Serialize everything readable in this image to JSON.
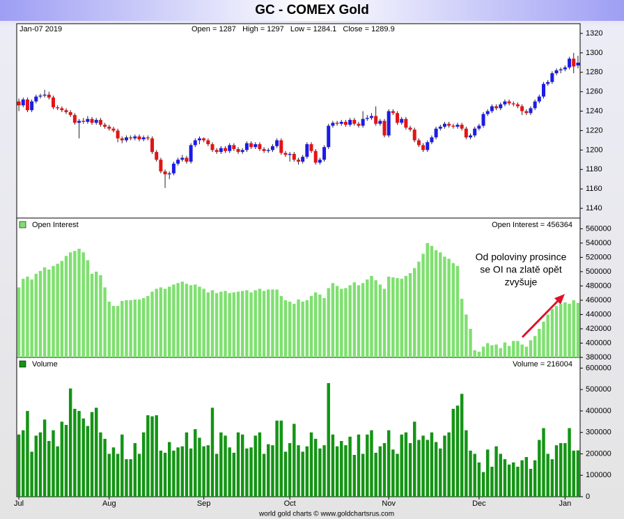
{
  "title": "GC - COMEX Gold",
  "footer": "world gold charts © www.goldchartsrus.com",
  "chart_data": [
    {
      "type": "candlestick",
      "date_label": "Jan-07  2019",
      "readout": "Open = 1287   High = 1297   Low = 1284.1   Close = 1289.9",
      "up_color": "#1c1ce6",
      "down_color": "#e41414",
      "wick_color": "#222222",
      "ylim": [
        1130,
        1330
      ],
      "yticks": [
        1140,
        1160,
        1180,
        1200,
        1220,
        1240,
        1260,
        1280,
        1300,
        1320
      ],
      "ohlc": [
        [
          1250,
          1253,
          1240,
          1246
        ],
        [
          1246,
          1254,
          1244,
          1252
        ],
        [
          1252,
          1254,
          1239,
          1241
        ],
        [
          1241,
          1252,
          1239,
          1250
        ],
        [
          1250,
          1257,
          1248,
          1255
        ],
        [
          1255,
          1258,
          1253,
          1256
        ],
        [
          1256,
          1262,
          1254,
          1257
        ],
        [
          1257,
          1260,
          1252,
          1254
        ],
        [
          1254,
          1256,
          1242,
          1244
        ],
        [
          1244,
          1246,
          1241,
          1243
        ],
        [
          1243,
          1245,
          1239,
          1241
        ],
        [
          1241,
          1243,
          1237,
          1239
        ],
        [
          1239,
          1241,
          1234,
          1236
        ],
        [
          1236,
          1238,
          1226,
          1228
        ],
        [
          1228,
          1232,
          1212,
          1230
        ],
        [
          1230,
          1233,
          1227,
          1229
        ],
        [
          1229,
          1235,
          1227,
          1232
        ],
        [
          1232,
          1234,
          1226,
          1228
        ],
        [
          1228,
          1233,
          1226,
          1231
        ],
        [
          1231,
          1233,
          1224,
          1226
        ],
        [
          1226,
          1228,
          1222,
          1224
        ],
        [
          1224,
          1226,
          1220,
          1222
        ],
        [
          1222,
          1224,
          1218,
          1220
        ],
        [
          1220,
          1222,
          1208,
          1212
        ],
        [
          1212,
          1214,
          1207,
          1210
        ],
        [
          1210,
          1215,
          1208,
          1213
        ],
        [
          1213,
          1215,
          1210,
          1212
        ],
        [
          1212,
          1216,
          1210,
          1214
        ],
        [
          1214,
          1216,
          1209,
          1211
        ],
        [
          1211,
          1215,
          1209,
          1213
        ],
        [
          1213,
          1215,
          1210,
          1212
        ],
        [
          1212,
          1214,
          1196,
          1198
        ],
        [
          1198,
          1200,
          1188,
          1190
        ],
        [
          1190,
          1192,
          1176,
          1178
        ],
        [
          1178,
          1180,
          1161,
          1175
        ],
        [
          1175,
          1178,
          1170,
          1176
        ],
        [
          1176,
          1188,
          1174,
          1186
        ],
        [
          1186,
          1192,
          1184,
          1190
        ],
        [
          1190,
          1195,
          1188,
          1192
        ],
        [
          1192,
          1194,
          1186,
          1188
        ],
        [
          1188,
          1207,
          1186,
          1205
        ],
        [
          1205,
          1212,
          1203,
          1210
        ],
        [
          1210,
          1214,
          1206,
          1212
        ],
        [
          1212,
          1213,
          1208,
          1210
        ],
        [
          1210,
          1212,
          1204,
          1206
        ],
        [
          1206,
          1208,
          1198,
          1200
        ],
        [
          1200,
          1202,
          1196,
          1198
        ],
        [
          1198,
          1204,
          1196,
          1202
        ],
        [
          1202,
          1204,
          1197,
          1199
        ],
        [
          1199,
          1207,
          1197,
          1205
        ],
        [
          1205,
          1207,
          1199,
          1201
        ],
        [
          1201,
          1203,
          1196,
          1198
        ],
        [
          1198,
          1202,
          1196,
          1200
        ],
        [
          1200,
          1209,
          1198,
          1207
        ],
        [
          1207,
          1209,
          1201,
          1203
        ],
        [
          1203,
          1208,
          1201,
          1206
        ],
        [
          1206,
          1208,
          1199,
          1201
        ],
        [
          1201,
          1203,
          1197,
          1199
        ],
        [
          1199,
          1202,
          1197,
          1200
        ],
        [
          1200,
          1206,
          1198,
          1204
        ],
        [
          1204,
          1212,
          1202,
          1210
        ],
        [
          1210,
          1212,
          1195,
          1197
        ],
        [
          1197,
          1199,
          1193,
          1195
        ],
        [
          1195,
          1198,
          1188,
          1196
        ],
        [
          1196,
          1198,
          1188,
          1190
        ],
        [
          1190,
          1192,
          1185,
          1188
        ],
        [
          1188,
          1195,
          1186,
          1193
        ],
        [
          1193,
          1208,
          1191,
          1206
        ],
        [
          1206,
          1208,
          1197,
          1199
        ],
        [
          1199,
          1201,
          1185,
          1187
        ],
        [
          1187,
          1192,
          1185,
          1190
        ],
        [
          1190,
          1205,
          1188,
          1203
        ],
        [
          1203,
          1227,
          1201,
          1225
        ],
        [
          1225,
          1230,
          1223,
          1228
        ],
        [
          1228,
          1230,
          1225,
          1227
        ],
        [
          1227,
          1231,
          1225,
          1229
        ],
        [
          1229,
          1231,
          1224,
          1226
        ],
        [
          1226,
          1233,
          1224,
          1231
        ],
        [
          1231,
          1233,
          1225,
          1227
        ],
        [
          1227,
          1229,
          1223,
          1225
        ],
        [
          1225,
          1240,
          1223,
          1232
        ],
        [
          1232,
          1236,
          1230,
          1233
        ],
        [
          1233,
          1238,
          1231,
          1235
        ],
        [
          1235,
          1245,
          1225,
          1227
        ],
        [
          1227,
          1232,
          1225,
          1230
        ],
        [
          1230,
          1232,
          1213,
          1215
        ],
        [
          1215,
          1242,
          1213,
          1240
        ],
        [
          1240,
          1242,
          1236,
          1238
        ],
        [
          1238,
          1240,
          1226,
          1228
        ],
        [
          1228,
          1234,
          1226,
          1232
        ],
        [
          1232,
          1234,
          1221,
          1223
        ],
        [
          1223,
          1225,
          1219,
          1221
        ],
        [
          1221,
          1223,
          1208,
          1210
        ],
        [
          1210,
          1212,
          1203,
          1205
        ],
        [
          1205,
          1207,
          1198,
          1200
        ],
        [
          1200,
          1210,
          1198,
          1208
        ],
        [
          1208,
          1215,
          1206,
          1213
        ],
        [
          1213,
          1224,
          1211,
          1222
        ],
        [
          1222,
          1226,
          1220,
          1224
        ],
        [
          1224,
          1229,
          1222,
          1227
        ],
        [
          1227,
          1229,
          1223,
          1225
        ],
        [
          1225,
          1227,
          1222,
          1224
        ],
        [
          1224,
          1228,
          1222,
          1226
        ],
        [
          1226,
          1228,
          1220,
          1222
        ],
        [
          1222,
          1224,
          1211,
          1213
        ],
        [
          1213,
          1217,
          1211,
          1215
        ],
        [
          1215,
          1224,
          1213,
          1222
        ],
        [
          1222,
          1227,
          1220,
          1225
        ],
        [
          1225,
          1239,
          1223,
          1237
        ],
        [
          1237,
          1242,
          1235,
          1240
        ],
        [
          1240,
          1247,
          1238,
          1245
        ],
        [
          1245,
          1247,
          1241,
          1243
        ],
        [
          1243,
          1249,
          1241,
          1247
        ],
        [
          1247,
          1252,
          1245,
          1250
        ],
        [
          1250,
          1252,
          1246,
          1248
        ],
        [
          1248,
          1250,
          1245,
          1247
        ],
        [
          1247,
          1249,
          1243,
          1245
        ],
        [
          1245,
          1247,
          1236,
          1240
        ],
        [
          1240,
          1242,
          1236,
          1238
        ],
        [
          1238,
          1245,
          1236,
          1243
        ],
        [
          1243,
          1252,
          1241,
          1250
        ],
        [
          1250,
          1257,
          1248,
          1255
        ],
        [
          1255,
          1270,
          1253,
          1268
        ],
        [
          1268,
          1272,
          1266,
          1270
        ],
        [
          1270,
          1281,
          1268,
          1279
        ],
        [
          1279,
          1284,
          1277,
          1282
        ],
        [
          1282,
          1285,
          1279,
          1283
        ],
        [
          1283,
          1287,
          1281,
          1285
        ],
        [
          1285,
          1296,
          1283,
          1294
        ],
        [
          1294,
          1300,
          1279,
          1286
        ],
        [
          1287,
          1297,
          1284.1,
          1289.9
        ]
      ]
    },
    {
      "type": "bar",
      "readout": "Open Interest = 456364",
      "annotation": [
        "Od poloviny prosince",
        "se OI na zlatě opět",
        "zvyšuje"
      ],
      "annotation_color": "#e0102a",
      "ylim": [
        380000,
        575000
      ],
      "yticks": [
        380000,
        400000,
        420000,
        440000,
        460000,
        480000,
        500000,
        520000,
        540000,
        560000
      ],
      "series": [
        {
          "name": "Open Interest",
          "color": "#7fe070",
          "values": [
            478000,
            490000,
            493000,
            489000,
            497000,
            501000,
            506000,
            503000,
            508000,
            511000,
            515000,
            522000,
            527000,
            529000,
            532000,
            527000,
            516000,
            497000,
            500000,
            495000,
            478000,
            458000,
            452000,
            452000,
            459000,
            460000,
            460000,
            461000,
            461000,
            463000,
            466000,
            472000,
            476000,
            478000,
            476000,
            479000,
            482000,
            484000,
            486000,
            483000,
            481000,
            482000,
            479000,
            476000,
            471000,
            474000,
            470000,
            472000,
            473000,
            470000,
            471000,
            472000,
            473000,
            474000,
            471000,
            474000,
            476000,
            473000,
            475000,
            475000,
            475000,
            466000,
            460000,
            458000,
            455000,
            461000,
            458000,
            460000,
            466000,
            471000,
            468000,
            463000,
            477000,
            484000,
            480000,
            476000,
            477000,
            481000,
            485000,
            481000,
            484000,
            489000,
            494000,
            488000,
            482000,
            476000,
            493000,
            492000,
            491000,
            490000,
            494000,
            498000,
            505000,
            514000,
            525000,
            540000,
            536000,
            530000,
            527000,
            521000,
            518000,
            512000,
            508000,
            462000,
            440000,
            420000,
            390000,
            388000,
            395000,
            400000,
            397000,
            398000,
            393000,
            401000,
            396000,
            403000,
            403000,
            398000,
            395000,
            404000,
            410000,
            420000,
            430000,
            440000,
            448000,
            452000,
            455000,
            457000,
            455000,
            460000,
            456364
          ]
        }
      ]
    },
    {
      "type": "bar",
      "readout": "Volume = 216004",
      "ylim": [
        0,
        650000
      ],
      "yticks": [
        0,
        100000,
        200000,
        300000,
        400000,
        500000,
        600000
      ],
      "categories": [
        "Jul",
        null,
        null,
        null,
        null,
        null,
        null,
        null,
        null,
        null,
        null,
        null,
        null,
        null,
        null,
        null,
        null,
        null,
        null,
        null,
        null,
        "Aug",
        null,
        null,
        null,
        null,
        null,
        null,
        null,
        null,
        null,
        null,
        null,
        null,
        null,
        null,
        null,
        null,
        null,
        null,
        null,
        null,
        null,
        "Sep",
        null,
        null,
        null,
        null,
        null,
        null,
        null,
        null,
        null,
        null,
        null,
        null,
        null,
        null,
        null,
        null,
        null,
        null,
        null,
        "Oct",
        null,
        null,
        null,
        null,
        null,
        null,
        null,
        null,
        null,
        null,
        null,
        null,
        null,
        null,
        null,
        null,
        null,
        null,
        null,
        null,
        null,
        null,
        "Nov",
        null,
        null,
        null,
        null,
        null,
        null,
        null,
        null,
        null,
        null,
        null,
        null,
        null,
        null,
        null,
        null,
        null,
        null,
        null,
        null,
        "Dec",
        null,
        null,
        null,
        null,
        null,
        null,
        null,
        null,
        null,
        null,
        null,
        null,
        null,
        null,
        null,
        null,
        null,
        null,
        null,
        "Jan",
        null,
        null,
        null
      ],
      "series": [
        {
          "name": "Volume",
          "color": "#149414",
          "values": [
            290000,
            310000,
            400000,
            210000,
            285000,
            300000,
            360000,
            260000,
            310000,
            235000,
            350000,
            335000,
            505000,
            410000,
            400000,
            365000,
            330000,
            395000,
            415000,
            300000,
            270000,
            200000,
            230000,
            200000,
            290000,
            175000,
            175000,
            250000,
            200000,
            300000,
            380000,
            375000,
            380000,
            215000,
            205000,
            255000,
            215000,
            230000,
            235000,
            300000,
            225000,
            315000,
            275000,
            235000,
            240000,
            415000,
            200000,
            300000,
            285000,
            230000,
            205000,
            300000,
            290000,
            225000,
            230000,
            285000,
            300000,
            200000,
            245000,
            240000,
            355000,
            355000,
            210000,
            250000,
            340000,
            240000,
            210000,
            235000,
            300000,
            270000,
            225000,
            240000,
            530000,
            290000,
            235000,
            260000,
            240000,
            280000,
            195000,
            290000,
            200000,
            290000,
            310000,
            205000,
            235000,
            250000,
            310000,
            220000,
            200000,
            290000,
            300000,
            250000,
            350000,
            265000,
            285000,
            265000,
            300000,
            255000,
            225000,
            285000,
            300000,
            410000,
            425000,
            480000,
            310000,
            215000,
            200000,
            160000,
            115000,
            220000,
            140000,
            235000,
            200000,
            175000,
            150000,
            160000,
            140000,
            170000,
            185000,
            130000,
            170000,
            265000,
            320000,
            200000,
            175000,
            240000,
            250000,
            250000,
            320000,
            215000,
            216004
          ]
        }
      ]
    }
  ]
}
